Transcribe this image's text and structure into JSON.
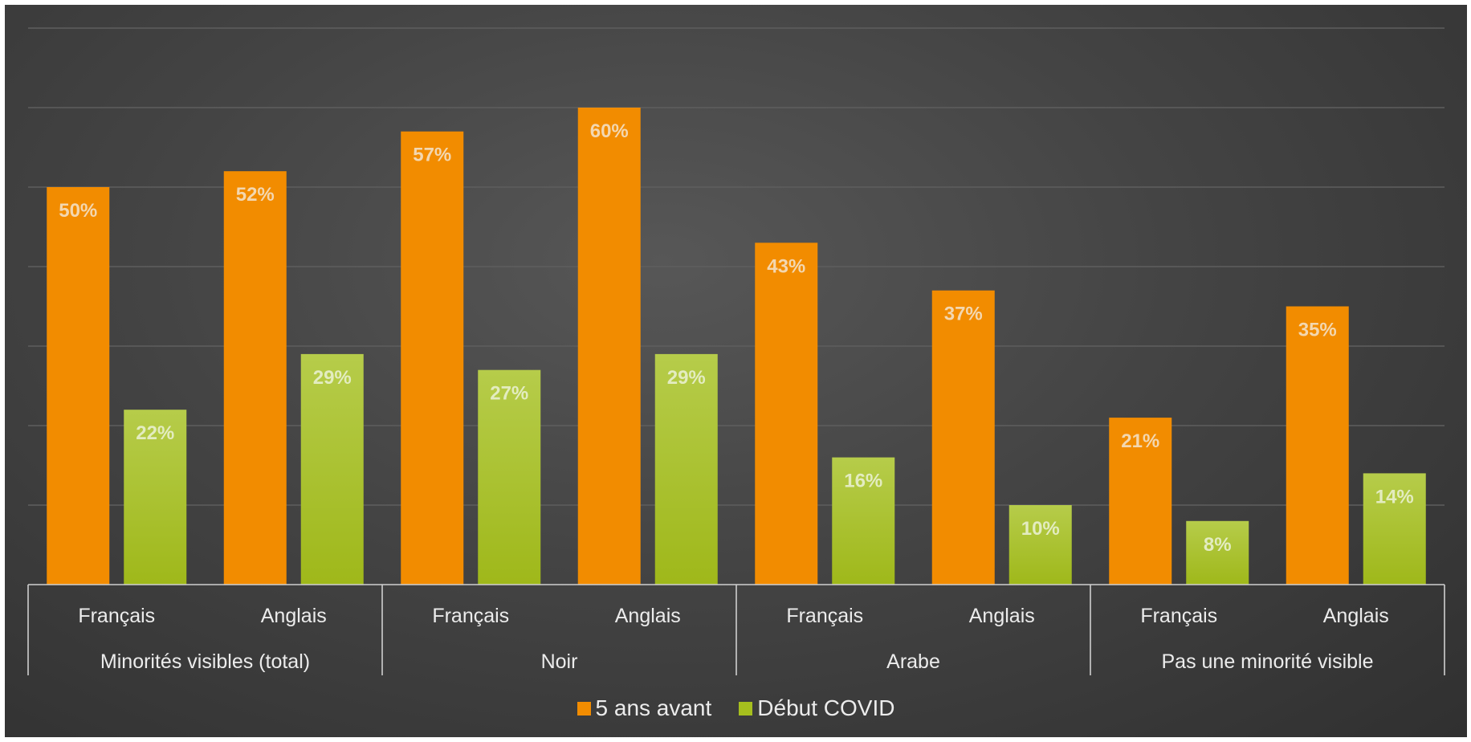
{
  "chart_data": {
    "type": "bar",
    "title": "",
    "xlabel": "",
    "ylabel": "",
    "ylim": [
      0,
      70
    ],
    "grid": true,
    "legend_position": "bottom",
    "groups": [
      "Minorités visibles (total)",
      "Noir",
      "Arabe",
      "Pas une minorité visible"
    ],
    "categories": [
      "Français",
      "Anglais",
      "Français",
      "Anglais",
      "Français",
      "Anglais",
      "Français",
      "Anglais"
    ],
    "series": [
      {
        "name": "5 ans avant",
        "color": "#f28c00",
        "label_color": "#f3d7b0",
        "values": [
          50,
          52,
          57,
          60,
          43,
          37,
          21,
          35
        ],
        "labels": [
          "50%",
          "52%",
          "57%",
          "60%",
          "43%",
          "37%",
          "21%",
          "35%"
        ]
      },
      {
        "name": "Début COVID",
        "color": "#a6bf1e",
        "color_light": "#b6cc4a",
        "label_color": "#e3ecc0",
        "values": [
          22,
          29,
          27,
          29,
          16,
          10,
          8,
          14
        ],
        "labels": [
          "22%",
          "29%",
          "27%",
          "29%",
          "16%",
          "10%",
          "8%",
          "14%"
        ]
      }
    ]
  }
}
